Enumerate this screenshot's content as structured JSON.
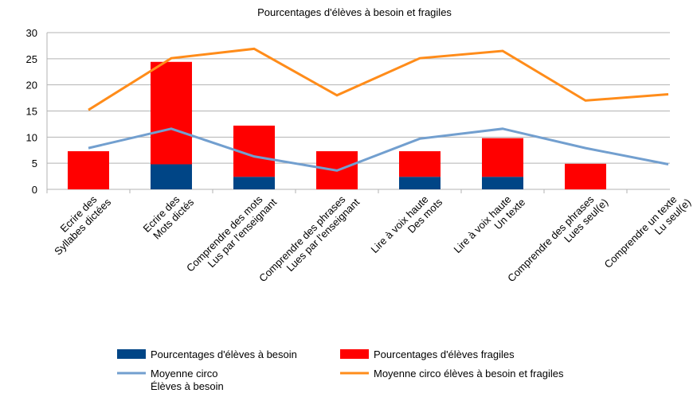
{
  "chart_data": {
    "type": "bar-line",
    "title": "Pourcentages d'élèves à besoin et fragiles",
    "categories": [
      [
        "Ecrire des",
        "Syllabes dictées"
      ],
      [
        "Ecrire des",
        "Mots dictés"
      ],
      [
        "Comprendre des mots",
        "Lus par l'enseignant"
      ],
      [
        "Comprendre des phrases",
        "Lues par l'enseignant"
      ],
      [
        "Lire à voix haute",
        "Des mots"
      ],
      [
        "Lire à voix haute",
        "Un texte"
      ],
      [
        "Comprendre des phrases",
        "Lues seul(e)"
      ],
      [
        "Comprendre un texte",
        "Lu seul(e)"
      ]
    ],
    "series": [
      {
        "name": "Pourcentages d'élèves à besoin",
        "type": "bar",
        "color": "#004586",
        "values": [
          0,
          4.8,
          2.4,
          0,
          2.4,
          2.4,
          0,
          0
        ]
      },
      {
        "name": "Pourcentages d'élèves fragiles",
        "type": "bar",
        "color": "#ff0000",
        "values": [
          7.3,
          19.6,
          9.8,
          7.3,
          4.9,
          7.4,
          4.9,
          0
        ]
      },
      {
        "name": "Moyenne circo\nÉlèves à besoin",
        "type": "line",
        "color": "#729fcf",
        "values": [
          7.9,
          11.6,
          6.3,
          3.6,
          9.7,
          11.6,
          7.9,
          4.8
        ]
      },
      {
        "name": "Moyenne circo élèves à besoin et fragiles",
        "type": "line",
        "color": "#ff8c1a",
        "values": [
          15.2,
          25.1,
          26.9,
          18.0,
          25.1,
          26.5,
          17.0,
          18.2
        ]
      }
    ],
    "ylim": [
      0,
      30
    ],
    "yticks": [
      0,
      5,
      10,
      15,
      20,
      25,
      30
    ],
    "grid": true,
    "stacked": true,
    "legend": "bottom"
  }
}
